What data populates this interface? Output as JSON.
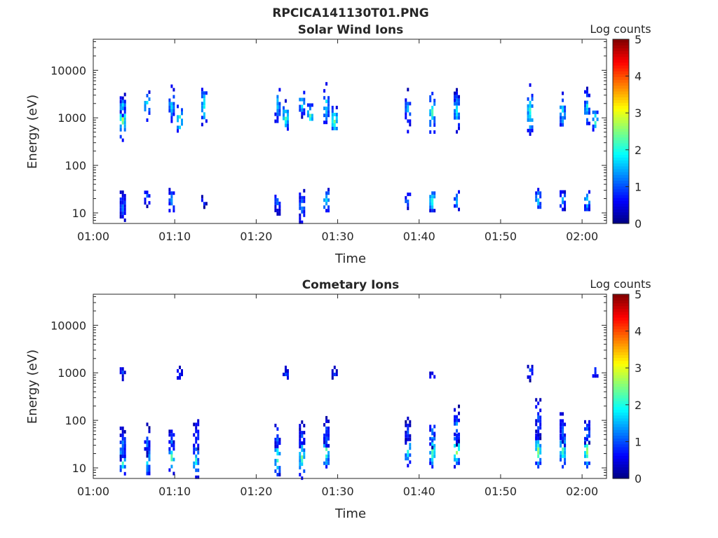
{
  "figure_title": "RPCICA141130T01.PNG",
  "chart_data": [
    {
      "type": "heatmap",
      "title": "Solar Wind Ions",
      "xlabel": "Time",
      "ylabel": "Energy (eV)",
      "x_scale": "time",
      "y_scale": "log",
      "xlim": [
        "01:00",
        "02:03"
      ],
      "ylim": [
        6,
        45000
      ],
      "x_ticks": [
        "01:00",
        "01:10",
        "01:20",
        "01:30",
        "01:40",
        "01:50",
        "02:00"
      ],
      "y_ticks": [
        10,
        100,
        1000,
        10000
      ],
      "y_tick_labels": [
        "10",
        "100",
        "1000",
        "10000"
      ],
      "colorbar": {
        "title": "Log counts",
        "range": [
          0,
          5
        ],
        "ticks": [
          "0",
          "1",
          "2",
          "3",
          "4",
          "5"
        ],
        "colormap": "jet"
      },
      "grid": false,
      "clusters": [
        {
          "t": "01:03",
          "e": 1000,
          "de": 0.45,
          "level": 2.9
        },
        {
          "t": "01:03",
          "e": 2000,
          "de": 0.3,
          "level": 1.6
        },
        {
          "t": "01:03",
          "e": 14,
          "de": 0.4,
          "level": 1.2
        },
        {
          "t": "01:06",
          "e": 2000,
          "de": 0.35,
          "level": 2.1
        },
        {
          "t": "01:06",
          "e": 22,
          "de": 0.2,
          "level": 1.3
        },
        {
          "t": "01:09",
          "e": 2000,
          "de": 0.4,
          "level": 1.8
        },
        {
          "t": "01:10",
          "e": 1000,
          "de": 0.35,
          "level": 2.4
        },
        {
          "t": "01:09",
          "e": 20,
          "de": 0.3,
          "level": 1.4
        },
        {
          "t": "01:13",
          "e": 1800,
          "de": 0.45,
          "level": 2.2
        },
        {
          "t": "01:13",
          "e": 20,
          "de": 0.15,
          "level": 1.0
        },
        {
          "t": "01:22",
          "e": 2000,
          "de": 0.4,
          "level": 1.7
        },
        {
          "t": "01:23",
          "e": 1100,
          "de": 0.35,
          "level": 2.5
        },
        {
          "t": "01:22",
          "e": 18,
          "de": 0.35,
          "level": 1.2
        },
        {
          "t": "01:25",
          "e": 2200,
          "de": 0.3,
          "level": 2.0
        },
        {
          "t": "01:26",
          "e": 1200,
          "de": 0.3,
          "level": 2.3
        },
        {
          "t": "01:25",
          "e": 15,
          "de": 0.4,
          "level": 1.3
        },
        {
          "t": "01:28",
          "e": 2000,
          "de": 0.45,
          "level": 1.9
        },
        {
          "t": "01:29",
          "e": 950,
          "de": 0.35,
          "level": 2.7
        },
        {
          "t": "01:28",
          "e": 20,
          "de": 0.3,
          "level": 2.0
        },
        {
          "t": "01:38",
          "e": 1600,
          "de": 0.5,
          "level": 1.5
        },
        {
          "t": "01:38",
          "e": 20,
          "de": 0.2,
          "level": 1.4
        },
        {
          "t": "01:41",
          "e": 1400,
          "de": 0.55,
          "level": 2.3
        },
        {
          "t": "01:41",
          "e": 20,
          "de": 0.3,
          "level": 2.2
        },
        {
          "t": "01:44",
          "e": 1500,
          "de": 0.45,
          "level": 1.9
        },
        {
          "t": "01:44",
          "e": 20,
          "de": 0.25,
          "level": 1.6
        },
        {
          "t": "01:53",
          "e": 1500,
          "de": 0.55,
          "level": 2.3
        },
        {
          "t": "01:54",
          "e": 20,
          "de": 0.3,
          "level": 1.7
        },
        {
          "t": "01:57",
          "e": 1500,
          "de": 0.45,
          "level": 1.9
        },
        {
          "t": "01:57",
          "e": 20,
          "de": 0.25,
          "level": 1.7
        },
        {
          "t": "02:00",
          "e": 1800,
          "de": 0.4,
          "level": 1.9
        },
        {
          "t": "02:01",
          "e": 1000,
          "de": 0.3,
          "level": 2.4
        },
        {
          "t": "02:00",
          "e": 20,
          "de": 0.25,
          "level": 2.0
        }
      ]
    },
    {
      "type": "heatmap",
      "title": "Cometary Ions",
      "xlabel": "Time",
      "ylabel": "Energy (eV)",
      "x_scale": "time",
      "y_scale": "log",
      "xlim": [
        "01:00",
        "02:03"
      ],
      "ylim": [
        6,
        45000
      ],
      "x_ticks": [
        "01:00",
        "01:10",
        "01:20",
        "01:30",
        "01:40",
        "01:50",
        "02:00"
      ],
      "y_ticks": [
        10,
        100,
        1000,
        10000
      ],
      "y_tick_labels": [
        "10",
        "100",
        "1000",
        "10000"
      ],
      "colorbar": {
        "title": "Log counts",
        "range": [
          0,
          5
        ],
        "ticks": [
          "0",
          "1",
          "2",
          "3",
          "4",
          "5"
        ],
        "colormap": "jet"
      },
      "grid": false,
      "clusters": [
        {
          "t": "01:03",
          "e": 15,
          "de": 0.4,
          "level": 2.4
        },
        {
          "t": "01:03",
          "e": 35,
          "de": 0.4,
          "level": 1.3
        },
        {
          "t": "01:03",
          "e": 1100,
          "de": 0.15,
          "level": 1.0
        },
        {
          "t": "01:06",
          "e": 18,
          "de": 0.4,
          "level": 2.2
        },
        {
          "t": "01:06",
          "e": 40,
          "de": 0.35,
          "level": 1.2
        },
        {
          "t": "01:09",
          "e": 18,
          "de": 0.4,
          "level": 2.3
        },
        {
          "t": "01:09",
          "e": 40,
          "de": 0.35,
          "level": 1.2
        },
        {
          "t": "01:10",
          "e": 1000,
          "de": 0.15,
          "level": 0.9
        },
        {
          "t": "01:12",
          "e": 15,
          "de": 0.4,
          "level": 2.0
        },
        {
          "t": "01:12",
          "e": 50,
          "de": 0.4,
          "level": 1.0
        },
        {
          "t": "01:22",
          "e": 18,
          "de": 0.45,
          "level": 2.3
        },
        {
          "t": "01:22",
          "e": 45,
          "de": 0.35,
          "level": 1.1
        },
        {
          "t": "01:23",
          "e": 1000,
          "de": 0.15,
          "level": 0.9
        },
        {
          "t": "01:25",
          "e": 18,
          "de": 0.45,
          "level": 2.4
        },
        {
          "t": "01:25",
          "e": 50,
          "de": 0.3,
          "level": 1.1
        },
        {
          "t": "01:28",
          "e": 25,
          "de": 0.4,
          "level": 2.6
        },
        {
          "t": "01:28",
          "e": 55,
          "de": 0.35,
          "level": 1.2
        },
        {
          "t": "01:29",
          "e": 1000,
          "de": 0.15,
          "level": 1.0
        },
        {
          "t": "01:38",
          "e": 25,
          "de": 0.35,
          "level": 2.3
        },
        {
          "t": "01:38",
          "e": 60,
          "de": 0.3,
          "level": 1.0
        },
        {
          "t": "01:41",
          "e": 25,
          "de": 0.4,
          "level": 2.6
        },
        {
          "t": "01:41",
          "e": 60,
          "de": 0.35,
          "level": 1.2
        },
        {
          "t": "01:41",
          "e": 1000,
          "de": 0.1,
          "level": 0.9
        },
        {
          "t": "01:44",
          "e": 25,
          "de": 0.4,
          "level": 2.8
        },
        {
          "t": "01:44",
          "e": 90,
          "de": 0.45,
          "level": 1.3
        },
        {
          "t": "01:54",
          "e": 25,
          "de": 0.4,
          "level": 2.7
        },
        {
          "t": "01:54",
          "e": 110,
          "de": 0.5,
          "level": 1.1
        },
        {
          "t": "01:53",
          "e": 1100,
          "de": 0.2,
          "level": 1.0
        },
        {
          "t": "01:57",
          "e": 25,
          "de": 0.4,
          "level": 2.6
        },
        {
          "t": "01:57",
          "e": 70,
          "de": 0.4,
          "level": 1.2
        },
        {
          "t": "02:00",
          "e": 25,
          "de": 0.4,
          "level": 2.7
        },
        {
          "t": "02:00",
          "e": 60,
          "de": 0.3,
          "level": 1.2
        },
        {
          "t": "02:01",
          "e": 1100,
          "de": 0.15,
          "level": 1.0
        }
      ]
    }
  ]
}
